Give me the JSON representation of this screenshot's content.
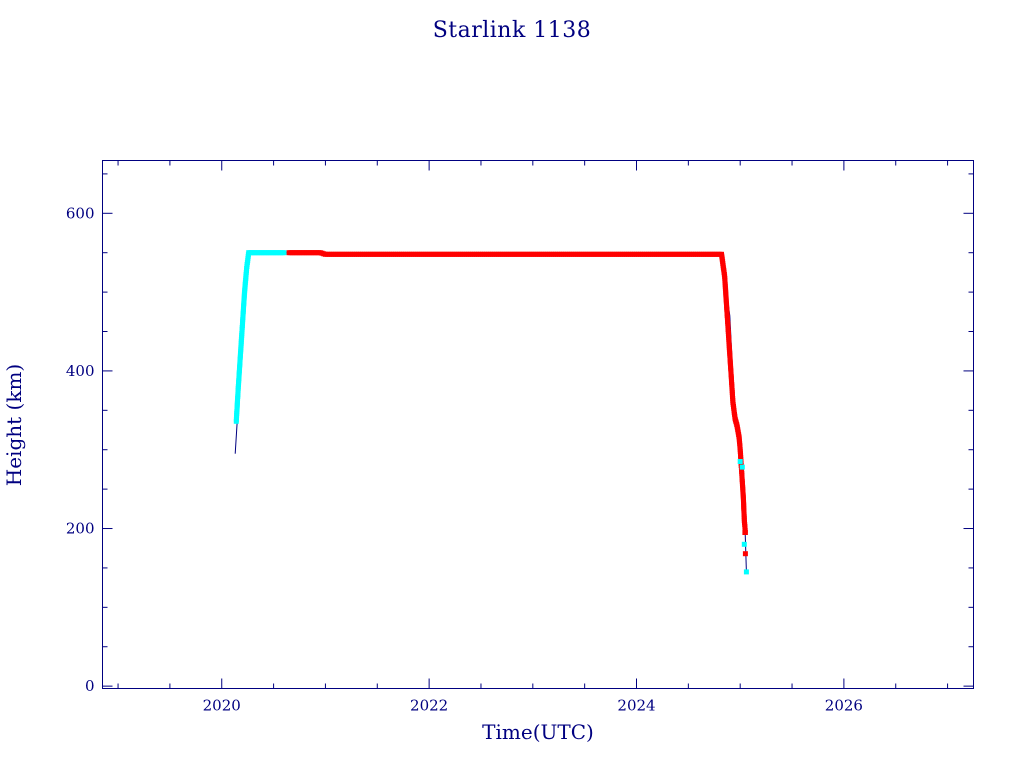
{
  "chart_data": {
    "type": "scatter",
    "title": "Starlink 1138",
    "xlabel": "Time(UTC)",
    "ylabel": "Height (km)",
    "xlim": [
      2018.85,
      2027.25
    ],
    "ylim": [
      -3,
      667
    ],
    "xticks": [
      2020,
      2022,
      2024,
      2026
    ],
    "xtick_labels": [
      "2020",
      "2022",
      "2024",
      "2026"
    ],
    "yticks": [
      0,
      200,
      400,
      600
    ],
    "ytick_labels": [
      "0",
      "200",
      "400",
      "600"
    ],
    "grid": false,
    "colors": {
      "axes": "#000080",
      "phase1": "#00ffff",
      "phase2": "#ff0000",
      "line": "#000080"
    },
    "trace_line": {
      "x": [
        2020.13,
        2020.25,
        2020.63,
        2021.0,
        2024.82,
        2024.9,
        2024.95,
        2024.99,
        2025.04,
        2025.06
      ],
      "y": [
        295,
        550,
        550,
        548,
        548,
        470,
        340,
        300,
        230,
        145
      ]
    },
    "series": [
      {
        "color": "#00ffff",
        "x": [
          2020.14,
          2020.16,
          2020.18,
          2020.2,
          2020.22,
          2020.24,
          2020.26,
          2020.3,
          2020.35,
          2020.4,
          2020.45,
          2020.5,
          2020.55,
          2020.6
        ],
        "y": [
          336,
          380,
          420,
          460,
          500,
          530,
          550,
          550,
          550,
          550,
          550,
          550,
          550,
          550
        ]
      },
      {
        "color": "#ff0000",
        "x": [
          2020.65,
          2020.75,
          2020.85,
          2020.95,
          2021.0,
          2021.3,
          2021.6,
          2022.0,
          2022.4,
          2022.8,
          2023.2,
          2023.6,
          2024.0,
          2024.4,
          2024.7,
          2024.82,
          2024.85,
          2024.87,
          2024.89,
          2024.91,
          2024.93,
          2024.95,
          2024.97,
          2024.99,
          2025.0,
          2025.01,
          2025.02,
          2025.03,
          2025.04,
          2025.05
        ],
        "y": [
          550,
          550,
          550,
          550,
          548,
          548,
          548,
          548,
          548,
          548,
          548,
          548,
          548,
          548,
          548,
          548,
          520,
          480,
          440,
          400,
          360,
          340,
          330,
          315,
          300,
          280,
          260,
          240,
          210,
          195
        ]
      },
      {
        "color": "#00ffff",
        "x": [
          2025.0,
          2025.02,
          2025.04,
          2025.06
        ],
        "y": [
          285,
          278,
          180,
          145
        ]
      },
      {
        "color": "#ff0000",
        "x": [
          2025.045,
          2025.05
        ],
        "y": [
          195,
          168
        ]
      }
    ]
  }
}
